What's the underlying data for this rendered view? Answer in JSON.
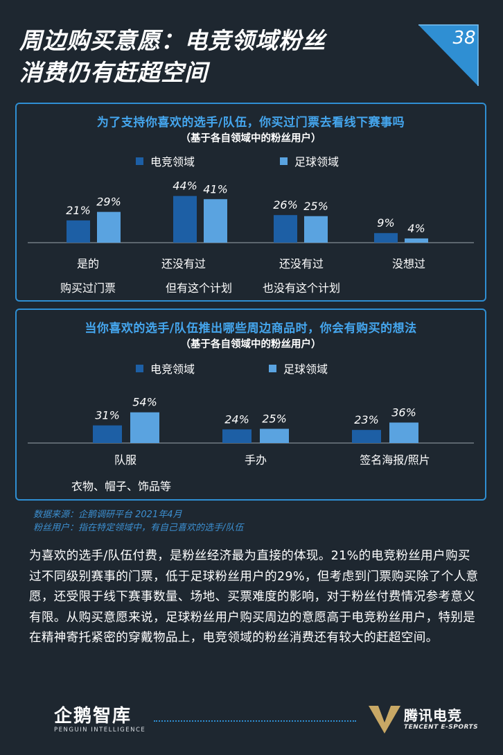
{
  "header": {
    "title_line1": "周边购买意愿：电竞领域粉丝",
    "title_line2": "消费仍有赶超空间",
    "page_number": "38"
  },
  "colors": {
    "esports": "#1d5fa5",
    "football": "#5aa3e0",
    "accent": "#2f8fd3",
    "background": "#1e2730"
  },
  "chart_data": [
    {
      "type": "bar",
      "title": "为了支持你喜欢的选手/队伍，你买过门票去看线下赛事吗",
      "subtitle": "（基于各自领域中的粉丝用户）",
      "categories": [
        [
          "是的",
          "购买过门票"
        ],
        [
          "还没有过",
          "但有这个计划"
        ],
        [
          "还没有过",
          "也没有这个计划"
        ],
        [
          "没想过",
          ""
        ]
      ],
      "series": [
        {
          "name": "电竞领域",
          "values": [
            21,
            44,
            26,
            9
          ],
          "labels": [
            "21%",
            "44%",
            "26%",
            "9%"
          ]
        },
        {
          "name": "足球领域",
          "values": [
            29,
            41,
            25,
            4
          ],
          "labels": [
            "29%",
            "41%",
            "25%",
            "4%"
          ]
        }
      ],
      "legend": "top-center"
    },
    {
      "type": "bar",
      "title": "当你喜欢的选手/队伍推出哪些周边商品时，你会有购买的想法",
      "subtitle": "（基于各自领域中的粉丝用户）",
      "categories": [
        [
          "队服",
          "衣物、帽子、饰品等"
        ],
        [
          "手办",
          ""
        ],
        [
          "签名海报/照片",
          ""
        ]
      ],
      "series": [
        {
          "name": "电竞领域",
          "values": [
            31,
            24,
            23
          ],
          "labels": [
            "31%",
            "24%",
            "23%"
          ]
        },
        {
          "name": "足球领域",
          "values": [
            54,
            25,
            36
          ],
          "labels": [
            "54%",
            "25%",
            "36%"
          ]
        }
      ],
      "legend": "top-center"
    }
  ],
  "source": {
    "line1": "数据来源：企鹅调研平台 2021年4月",
    "line2": "粉丝用户：指在特定领域中，有自己喜欢的选手/队伍"
  },
  "body": {
    "paragraph": "为喜欢的选手/队伍付费，是粉丝经济最为直接的体现。21%的电竞粉丝用户购买过不同级别赛事的门票，低于足球粉丝用户的29%，但考虑到门票购买除了个人意愿，还受限于线下赛事数量、场地、买票难度的影响，对于粉丝付费情况参考意义有限。从购买意愿来说，足球粉丝用户购买周边的意愿高于电竞粉丝用户，特别是在精神寄托紧密的穿戴物品上，电竞领域的粉丝消费还有较大的赶超空间。"
  },
  "footer": {
    "left_logo": "企鹅智库",
    "left_sub": "PENGUIN INTELLIGENCE",
    "right_logo": "腾讯电竞",
    "right_sub": "TENCENT E-SPORTS"
  }
}
